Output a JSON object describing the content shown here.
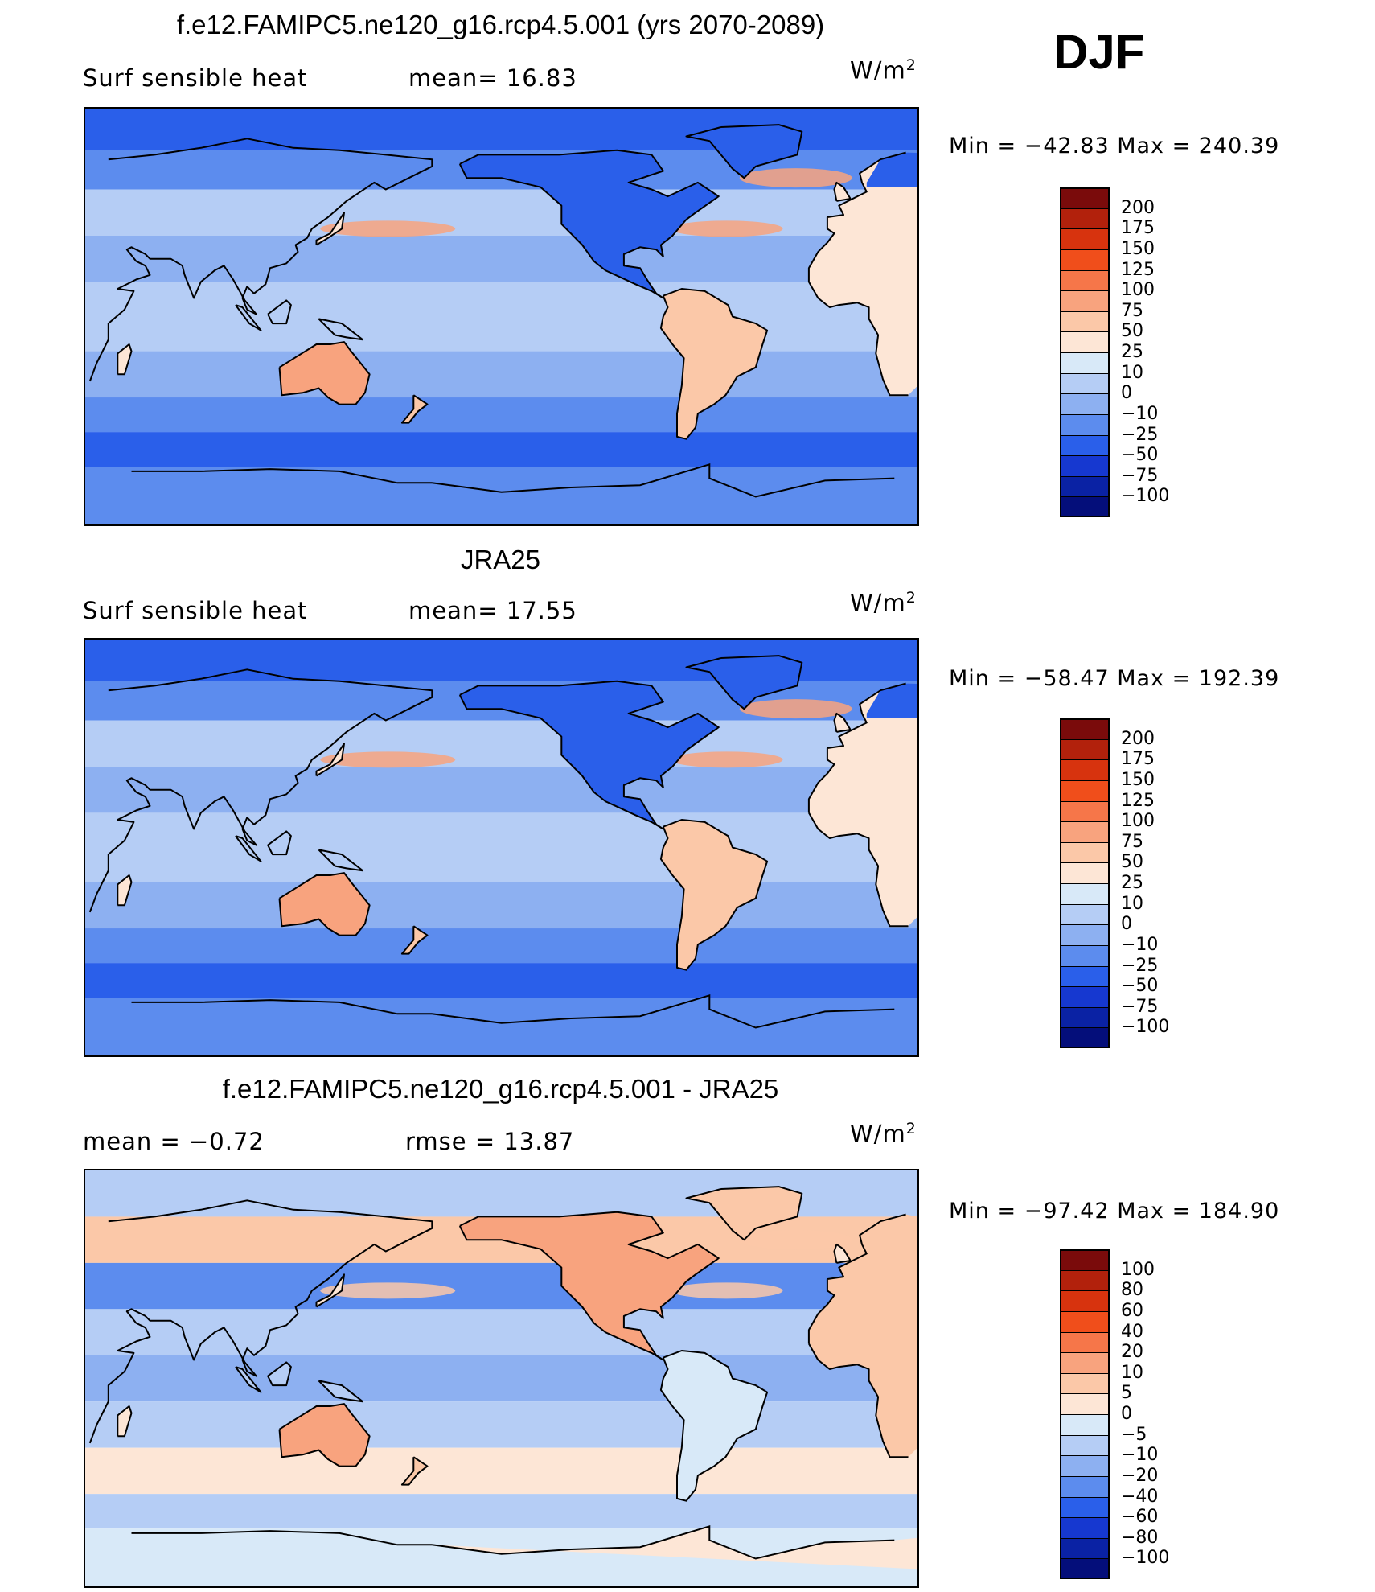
{
  "season": "DJF",
  "units_base": "W/m",
  "units_exp": "2",
  "panels": [
    {
      "title": "f.e12.FAMIPC5.ne120_g16.rcp4.5.001 (yrs 2070-2089)",
      "left_label": "Surf sensible heat",
      "center_label": "mean=   16.83",
      "minmax": "Min  =  −42.83  Max  =  240.39",
      "levels": [
        "200",
        "175",
        "150",
        "125",
        "100",
        "75",
        "50",
        "25",
        "10",
        "0",
        "−10",
        "−25",
        "−50",
        "−75",
        "−100"
      ],
      "colors": [
        "#7a0b0b",
        "#b2210c",
        "#d7330e",
        "#f04e1b",
        "#f67649",
        "#f8a37e",
        "#fbc8a8",
        "#fde6d6",
        "#d8e9f8",
        "#b5cdf5",
        "#8db0f1",
        "#5c8cee",
        "#2a5fea",
        "#1638d0",
        "#0a22a4",
        "#040e7a"
      ],
      "wave": 0
    },
    {
      "title": "JRA25",
      "left_label": "Surf sensible heat",
      "center_label": "mean=   17.55",
      "minmax": "Min  =  −58.47  Max  =  192.39",
      "levels": [
        "200",
        "175",
        "150",
        "125",
        "100",
        "75",
        "50",
        "25",
        "10",
        "0",
        "−10",
        "−25",
        "−50",
        "−75",
        "−100"
      ],
      "colors": [
        "#7a0b0b",
        "#b2210c",
        "#d7330e",
        "#f04e1b",
        "#f67649",
        "#f8a37e",
        "#fbc8a8",
        "#fde6d6",
        "#d8e9f8",
        "#b5cdf5",
        "#8db0f1",
        "#5c8cee",
        "#2a5fea",
        "#1638d0",
        "#0a22a4",
        "#040e7a"
      ],
      "wave": 1
    },
    {
      "title": "f.e12.FAMIPC5.ne120_g16.rcp4.5.001 - JRA25",
      "left_label": "mean  =    −0.72",
      "center_label": "rmse  =    13.87",
      "minmax": "Min  =  −97.42  Max  =  184.90",
      "levels": [
        "100",
        "80",
        "60",
        "40",
        "20",
        "10",
        "5",
        "0",
        "−5",
        "−10",
        "−20",
        "−40",
        "−60",
        "−80",
        "−100"
      ],
      "colors": [
        "#7a0b0b",
        "#b2210c",
        "#d7330e",
        "#f04e1b",
        "#f67649",
        "#f8a37e",
        "#fbc8a8",
        "#fde6d6",
        "#d8e9f8",
        "#b5cdf5",
        "#8db0f1",
        "#5c8cee",
        "#2a5fea",
        "#1638d0",
        "#0a22a4",
        "#040e7a"
      ],
      "wave": 2
    }
  ]
}
